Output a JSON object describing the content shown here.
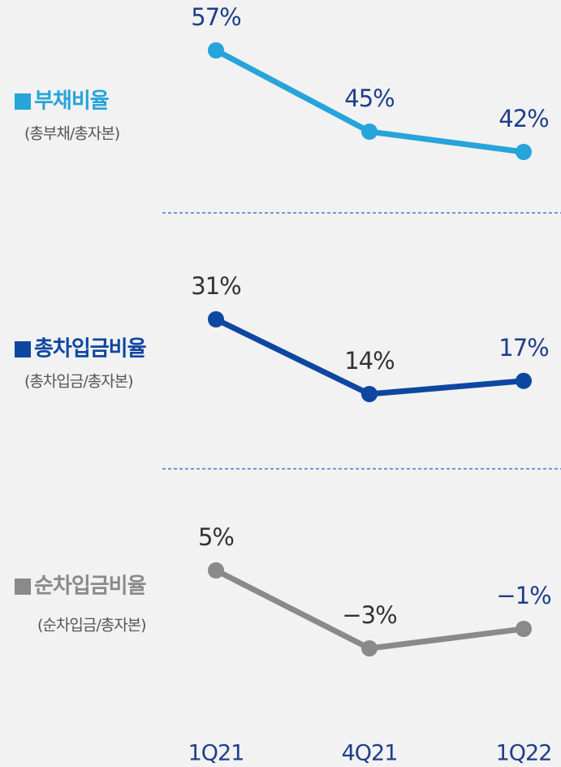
{
  "chart_data": [
    {
      "type": "line",
      "title": "부채비율",
      "subtitle": "(총부채/총자본)",
      "color": "#27a4da",
      "values": [
        57,
        45,
        42
      ],
      "value_labels": [
        "57%",
        "45%",
        "42%"
      ]
    },
    {
      "type": "line",
      "title": "총차입금비율",
      "subtitle": "(총차입금/총자본)",
      "color": "#0d47a1",
      "values": [
        31,
        14,
        17
      ],
      "value_labels": [
        "31%",
        "14%",
        "17%"
      ]
    },
    {
      "type": "line",
      "title": "순차입금비율",
      "subtitle": "(순차입금/총자본)",
      "color": "#8a8a8a",
      "values": [
        5,
        -3,
        -1
      ],
      "value_labels": [
        "5%",
        "−3%",
        "−1%"
      ],
      "categories": [
        "1Q21",
        "4Q21",
        "1Q22"
      ]
    }
  ]
}
